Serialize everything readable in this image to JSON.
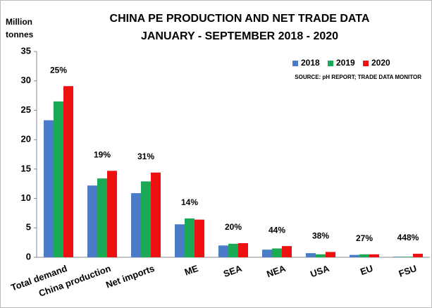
{
  "chart_data": {
    "type": "bar",
    "title": "CHINA PE PRODUCTION AND NET TRADE DATA",
    "subtitle": "JANUARY - SEPTEMBER  2018 - 2020",
    "ylabel": "Million tonnes",
    "source": "SOURCE:  pH REPORT;  TRADE DATA MONITOR",
    "categories": [
      "Total demand",
      "China production",
      "Net imports",
      "ME",
      "SEA",
      "NEA",
      "USA",
      "EU",
      "FSU"
    ],
    "annotations": [
      "25%",
      "19%",
      "31%",
      "14%",
      "20%",
      "44%",
      "38%",
      "27%",
      "448%"
    ],
    "series": [
      {
        "name": "2018",
        "color": "#4a7cc9",
        "values": [
          23.3,
          12.2,
          10.9,
          5.6,
          2.0,
          1.3,
          0.7,
          0.4,
          0.1
        ]
      },
      {
        "name": "2019",
        "color": "#1aaa55",
        "values": [
          26.5,
          13.4,
          12.9,
          6.6,
          2.3,
          1.5,
          0.5,
          0.5,
          0.1
        ]
      },
      {
        "name": "2020",
        "color": "#ee1111",
        "values": [
          29.1,
          14.7,
          14.4,
          6.4,
          2.4,
          1.9,
          0.9,
          0.5,
          0.6
        ]
      }
    ],
    "ylim": [
      0,
      35
    ],
    "yticks": [
      0,
      5,
      10,
      15,
      20,
      25,
      30,
      35
    ],
    "grid": false,
    "legend": "top-right"
  }
}
